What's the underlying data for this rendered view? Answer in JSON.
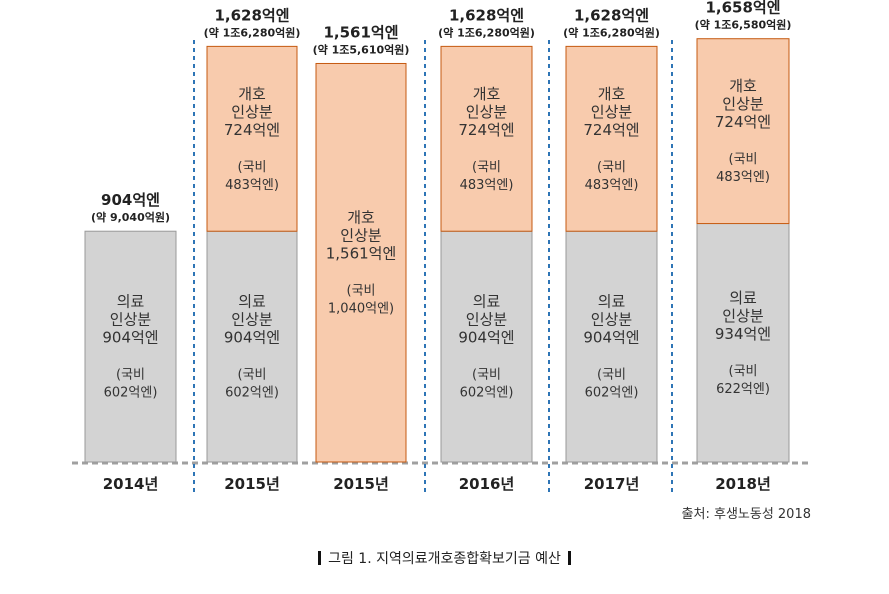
{
  "chart_data": {
    "type": "stacked-bar",
    "categories": [
      "2014년",
      "2015년",
      "2015년",
      "2016년",
      "2017년",
      "2018년"
    ],
    "series": [
      {
        "segment_labels": [
          [
            "의료",
            "인상분",
            "904억엔",
            "",
            "(국비",
            "602억엔)"
          ],
          [
            "의료",
            "인상분",
            "904억엔",
            "",
            "(국비",
            "602억엔)"
          ],
          null,
          [
            "의료",
            "인상분",
            "904억엔",
            "",
            "(국비",
            "602억엔)"
          ],
          [
            "의료",
            "인상분",
            "904억엔",
            "",
            "(국비",
            "602억엔)"
          ],
          [
            "의료",
            "인상분",
            "934억엔",
            "",
            "(국비",
            "622억엔)"
          ]
        ],
        "values": [
          904,
          904,
          0,
          904,
          904,
          934
        ],
        "color": "#d3d3d3"
      },
      {
        "segment_labels": [
          null,
          [
            "개호",
            "인상분",
            "724억엔",
            "",
            "(국비",
            "483억엔)"
          ],
          [
            "개호",
            "인상분",
            "1,561억엔",
            "",
            "(국비",
            "1,040억엔)"
          ],
          [
            "개호",
            "인상분",
            "724억엔",
            "",
            "(국비",
            "483억엔)"
          ],
          [
            "개호",
            "인상분",
            "724억엔",
            "",
            "(국비",
            "483억엔)"
          ],
          [
            "개호",
            "인상분",
            "724억엔",
            "",
            "(국비",
            "483억엔)"
          ]
        ],
        "values": [
          0,
          724,
          1561,
          724,
          724,
          724
        ],
        "color": "#f8cbad"
      }
    ],
    "totals": [
      {
        "line1": "904억엔",
        "line2": "(약 9,040억원)"
      },
      {
        "line1": "1,628억엔",
        "line2": "(약 1조6,280억원)"
      },
      {
        "line1": "1,561억엔",
        "line2": "(약 1조5,610억원)"
      },
      {
        "line1": "1,628억엔",
        "line2": "(약 1조6,280억원)"
      },
      {
        "line1": "1,628억엔",
        "line2": "(약 1조6,280억원)"
      },
      {
        "line1": "1,658억엔",
        "line2": "(약 1조6,580억원)"
      }
    ],
    "separator_color": "#2e75b6"
  },
  "source_text": "출처: 후생노동성 2018",
  "caption_text": "그림 1. 지역의료개호종합확보기금 예산"
}
